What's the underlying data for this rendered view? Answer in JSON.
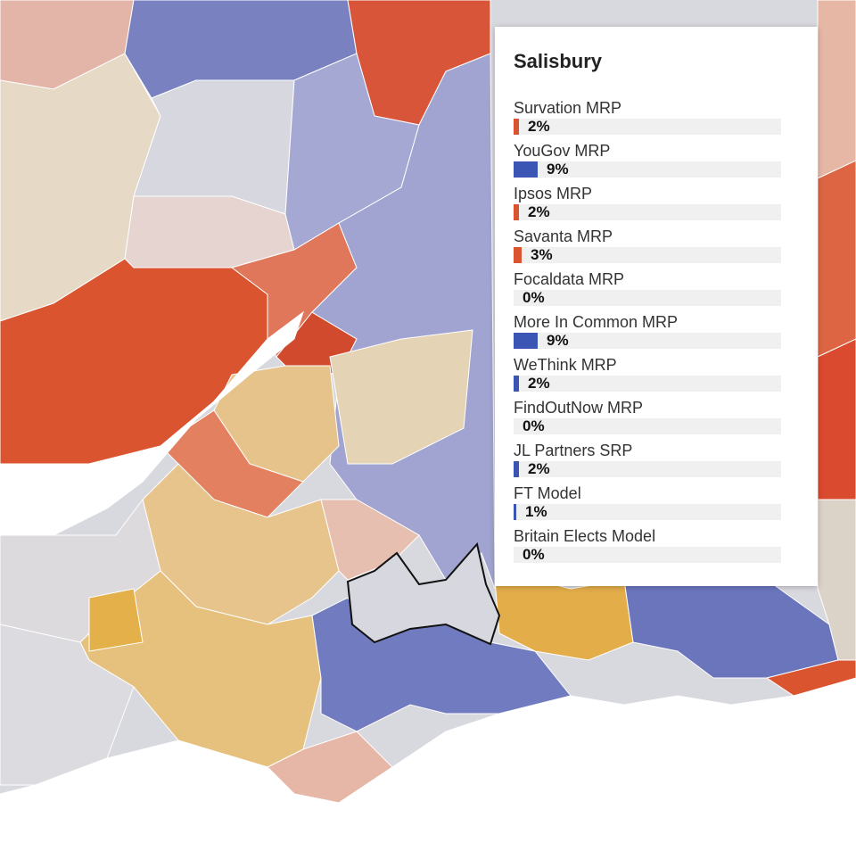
{
  "tooltip": {
    "title": "Salisbury",
    "rows": [
      {
        "name": "Survation MRP",
        "value": 2,
        "value_label": "2%",
        "color": "#d9542f"
      },
      {
        "name": "YouGov MRP",
        "value": 9,
        "value_label": "9%",
        "color": "#3b55b5"
      },
      {
        "name": "Ipsos MRP",
        "value": 2,
        "value_label": "2%",
        "color": "#d9542f"
      },
      {
        "name": "Savanta MRP",
        "value": 3,
        "value_label": "3%",
        "color": "#d9542f"
      },
      {
        "name": "Focaldata MRP",
        "value": 0,
        "value_label": "0%",
        "color": "#3b55b5"
      },
      {
        "name": "More In Common MRP",
        "value": 9,
        "value_label": "9%",
        "color": "#3b55b5"
      },
      {
        "name": "WeThink MRP",
        "value": 2,
        "value_label": "2%",
        "color": "#3b55b5"
      },
      {
        "name": "FindOutNow MRP",
        "value": 0,
        "value_label": "0%",
        "color": "#3b55b5"
      },
      {
        "name": "JL Partners SRP",
        "value": 2,
        "value_label": "2%",
        "color": "#3b55b5"
      },
      {
        "name": "FT Model",
        "value": 1,
        "value_label": "1%",
        "color": "#3b55b5"
      },
      {
        "name": "Britain Elects Model",
        "value": 0,
        "value_label": "0%",
        "color": "#3b55b5"
      }
    ]
  }
}
